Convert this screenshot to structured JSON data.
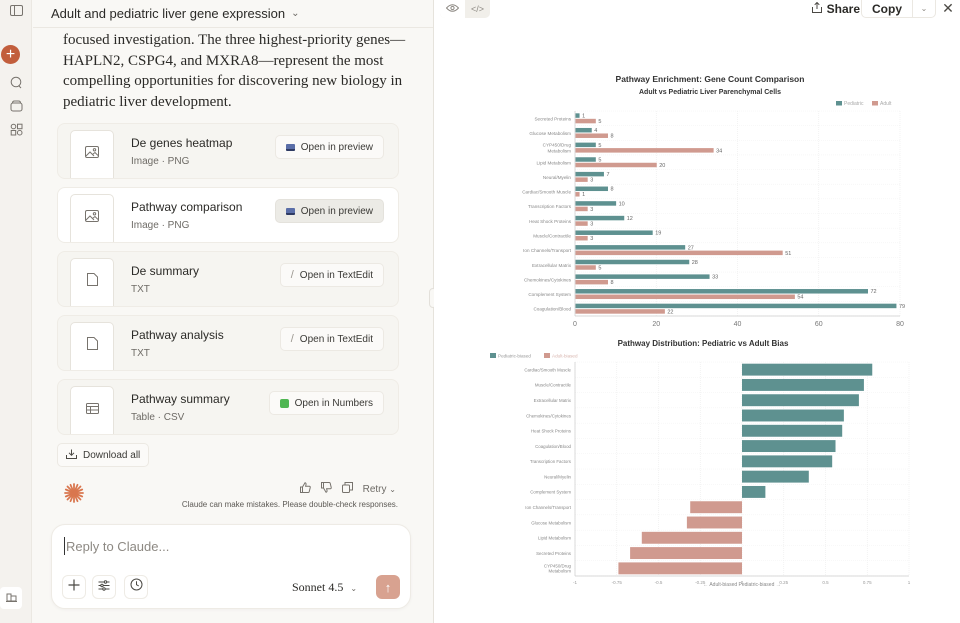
{
  "header": {
    "conversation_title": "Adult and pediatric liver gene expression"
  },
  "message": {
    "text": "focused investigation. The three highest-priority genes—HAPLN2, CSPG4, and MXRA8—represent the most compelling opportunities for discovering new biology in pediatric liver development."
  },
  "files": [
    {
      "title": "De genes heatmap",
      "subtitle": "Image · PNG",
      "icon": "image-icon",
      "action_label": "Open in preview",
      "action_icon": "preview-app-icon"
    },
    {
      "title": "Pathway comparison",
      "subtitle": "Image · PNG",
      "icon": "image-icon",
      "action_label": "Open in preview",
      "action_icon": "preview-app-icon"
    },
    {
      "title": "De summary",
      "subtitle": "TXT",
      "icon": "document-icon",
      "action_label": "Open in TextEdit",
      "action_icon": "textedit-app-icon"
    },
    {
      "title": "Pathway analysis",
      "subtitle": "TXT",
      "icon": "document-icon",
      "action_label": "Open in TextEdit",
      "action_icon": "textedit-app-icon"
    },
    {
      "title": "Pathway summary",
      "subtitle": "Table · CSV",
      "icon": "table-icon",
      "action_label": "Open in Numbers",
      "action_icon": "numbers-app-icon"
    }
  ],
  "download_all_label": "Download all",
  "message_actions": {
    "retry_label": "Retry",
    "disclaimer": "Claude can make mistakes. Please double-check responses."
  },
  "composer": {
    "placeholder": "Reply to Claude...",
    "value": "",
    "model_label": "Sonnet 4.5"
  },
  "artifact": {
    "share_label": "Share",
    "copy_label": "Copy"
  },
  "colors": {
    "pediatric": "#5e9190",
    "adult": "#d09a8f",
    "accent": "#c25e3c"
  },
  "chart_data": [
    {
      "type": "bar",
      "orientation": "horizontal",
      "title": "Pathway Enrichment: Gene Count Comparison",
      "subtitle": "Adult vs Pediatric Liver Parenchymal Cells",
      "xlabel": "",
      "ylabel": "",
      "xlim": [
        0,
        80
      ],
      "xticks": [
        0,
        20,
        40,
        60,
        80
      ],
      "grid": true,
      "legend": "top-right",
      "categories": [
        "Secreted Proteins",
        "Glucose Metabolism",
        "CYP450/Drug Metabolism",
        "Lipid Metabolism",
        "Neural/Myelin",
        "Cardiac/Smooth Muscle",
        "Transcription Factors",
        "Heat Shock Proteins",
        "Muscle/Contractile",
        "Ion Channels/Transport",
        "Extracellular Matrix",
        "Chemokines/Cytokines",
        "Complement System",
        "Coagulation/Blood"
      ],
      "series": [
        {
          "name": "Pediatric",
          "values": [
            1,
            4,
            5,
            5,
            7,
            8,
            10,
            12,
            19,
            27,
            28,
            33,
            72,
            79
          ]
        },
        {
          "name": "Adult",
          "values": [
            5,
            8,
            34,
            20,
            3,
            1,
            3,
            3,
            3,
            51,
            5,
            8,
            54,
            22
          ]
        }
      ]
    },
    {
      "type": "bar",
      "orientation": "horizontal",
      "title": "Pathway Distribution: Pediatric vs Adult Bias",
      "xlabel": "← Adult-biased Pediatric-biased →",
      "ylabel": "",
      "xlim": [
        -1,
        1
      ],
      "xticks": [
        -1,
        -0.75,
        -0.5,
        -0.25,
        0,
        0.25,
        0.5,
        0.75,
        1
      ],
      "xtick_labels": [
        "-1",
        "-0.75",
        "-0.5",
        "-0.25",
        "0",
        "0.25",
        "0.5",
        "0.75",
        "1"
      ],
      "grid": true,
      "legend": "top-left",
      "legend_entries": [
        "Pediatric-biased",
        "Adult-biased"
      ],
      "categories": [
        "Cardiac/Smooth Muscle",
        "Muscle/Contractile",
        "Extracellular Matrix",
        "Chemokines/Cytokines",
        "Heat Shock Proteins",
        "Coagulation/Blood",
        "Transcription Factors",
        "Neural/Myelin",
        "Complement System",
        "Ion Channels/Transport",
        "Glucose Metabolism",
        "Lipid Metabolism",
        "Secreted Proteins",
        "CYP450/Drug Metabolism"
      ],
      "values": [
        0.78,
        0.73,
        0.7,
        0.61,
        0.6,
        0.56,
        0.54,
        0.4,
        0.14,
        -0.31,
        -0.33,
        -0.6,
        -0.67,
        -0.74
      ]
    }
  ]
}
